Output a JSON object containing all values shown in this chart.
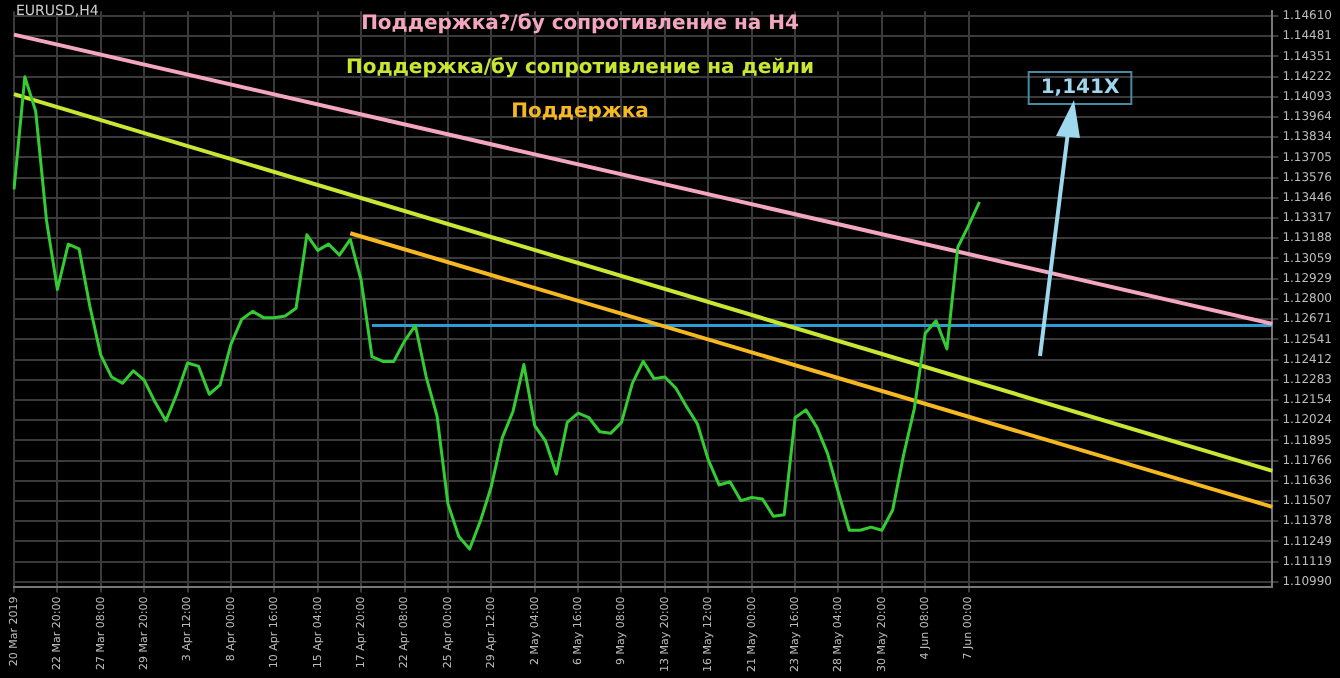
{
  "chart_data": {
    "type": "line",
    "title": "EURUSD,H4",
    "grid": true,
    "ylim": [
      1.1096,
      1.1464
    ],
    "yticks": [
      {
        "value": 1.1099,
        "label": "1.10990"
      },
      1.11119,
      1.11249,
      1.11378,
      1.11507,
      1.11636,
      1.11766,
      1.11895,
      1.12024,
      1.12154,
      1.12283,
      1.12412,
      1.12541,
      1.12671,
      {
        "value": 1.128,
        "label": "1.12800"
      },
      1.12929,
      1.13059,
      1.13188,
      1.13317,
      1.13446,
      1.13576,
      1.13705,
      1.13834,
      1.13964,
      1.14093,
      1.14222,
      1.14351,
      1.14481,
      {
        "value": 1.1461,
        "label": "1.14610"
      }
    ],
    "categories": [
      "20 Mar 2019",
      null,
      null,
      null,
      "22 Mar 20:00",
      null,
      null,
      null,
      "27 Mar 08:00",
      null,
      null,
      null,
      "29 Mar 20:00",
      null,
      null,
      null,
      "3 Apr 12:00",
      null,
      null,
      null,
      "8 Apr 00:00",
      null,
      null,
      null,
      "10 Apr 16:00",
      null,
      null,
      null,
      "15 Apr 04:00",
      null,
      null,
      null,
      "17 Apr 20:00",
      null,
      null,
      null,
      "22 Apr 08:00",
      null,
      null,
      null,
      "25 Apr 00:00",
      null,
      null,
      null,
      "29 Apr 12:00",
      null,
      null,
      null,
      "2 May 04:00",
      null,
      null,
      null,
      "6 May 16:00",
      null,
      null,
      null,
      "9 May 08:00",
      null,
      null,
      null,
      "13 May 20:00",
      null,
      null,
      null,
      "16 May 12:00",
      null,
      null,
      null,
      "21 May 00:00",
      null,
      null,
      null,
      "23 May 16:00",
      null,
      null,
      null,
      "28 May 04:00",
      null,
      null,
      null,
      "30 May 20:00",
      null,
      null,
      null,
      "4 Jun 08:00",
      null,
      null,
      null,
      "7 Jun 00:00",
      null,
      null,
      null,
      null,
      null,
      null,
      null,
      null,
      null,
      null,
      null,
      null,
      null,
      null,
      null,
      null,
      null,
      null,
      null,
      null,
      null,
      null,
      null,
      null,
      null,
      null,
      null,
      null
    ],
    "series": [
      {
        "color": "#33cc33",
        "values": [
          1.135,
          1.1422,
          1.14,
          1.133,
          1.1286,
          1.1315,
          1.1312,
          1.1275,
          1.1244,
          1.123,
          1.1226,
          1.1234,
          1.1228,
          1.1214,
          1.1202,
          1.1219,
          1.1239,
          1.1237,
          1.1219,
          1.1225,
          1.1251,
          1.1267,
          1.1272,
          1.1268,
          1.1268,
          1.1269,
          1.1274,
          1.1321,
          1.1311,
          1.1315,
          1.1308,
          1.1318,
          1.1292,
          1.1243,
          1.124,
          1.124,
          1.1253,
          1.1263,
          1.123,
          1.1205,
          1.1149,
          1.1128,
          1.112,
          1.1138,
          1.116,
          1.1191,
          1.1208,
          1.1238,
          1.1199,
          1.1189,
          1.1168,
          1.1201,
          1.1207,
          1.1204,
          1.1195,
          1.1194,
          1.1201,
          1.1226,
          1.124,
          1.1229,
          1.123,
          1.1223,
          1.1211,
          1.12,
          1.1177,
          1.1161,
          1.1163,
          1.1151,
          1.1153,
          1.1152,
          1.1141,
          1.1142,
          1.1204,
          1.1209,
          1.1198,
          1.1181,
          1.1156,
          1.1132,
          1.1132,
          1.1134,
          1.1132,
          1.1145,
          1.118,
          1.121,
          1.1258,
          1.1266,
          1.1248,
          1.1313,
          1.1327,
          1.1342,
          null,
          null,
          null,
          null,
          null,
          null,
          null,
          null,
          null,
          null,
          null,
          null,
          null,
          null,
          null,
          null,
          null,
          null,
          null,
          null,
          null,
          null,
          null,
          null,
          null,
          null,
          null
        ]
      },
      {
        "name": "Поддержка?/бу сопротивление на H4",
        "color": "#f4a6c0",
        "values": [
          1.1449,
          null,
          null,
          null,
          null,
          null,
          null,
          null,
          null,
          null,
          null,
          null,
          null,
          null,
          null,
          null,
          null,
          null,
          null,
          null,
          null,
          null,
          null,
          null,
          null,
          null,
          null,
          null,
          null,
          null,
          null,
          null,
          null,
          null,
          null,
          null,
          null,
          null,
          null,
          null,
          null,
          null,
          null,
          null,
          null,
          null,
          null,
          null,
          null,
          null,
          null,
          null,
          null,
          null,
          null,
          null,
          null,
          null,
          null,
          null,
          null,
          null,
          null,
          null,
          null,
          null,
          null,
          null,
          null,
          null,
          null,
          null,
          null,
          null,
          null,
          null,
          null,
          null,
          null,
          null,
          null,
          null,
          null,
          null,
          null,
          null,
          null,
          null,
          null,
          null,
          null,
          null,
          null,
          null,
          null,
          null,
          null,
          null,
          null,
          null,
          null,
          null,
          null,
          null,
          null,
          null,
          null,
          null,
          null,
          null,
          null,
          null,
          null,
          null,
          null,
          null,
          1.1264
        ]
      },
      {
        "name": "Поддержка/бу сопротивление на дейли",
        "color": "#c8e632",
        "values": [
          1.1411,
          null,
          null,
          null,
          null,
          null,
          null,
          null,
          null,
          null,
          null,
          null,
          null,
          null,
          null,
          null,
          null,
          null,
          null,
          null,
          null,
          null,
          null,
          null,
          null,
          null,
          null,
          null,
          null,
          null,
          null,
          null,
          null,
          null,
          null,
          null,
          null,
          null,
          null,
          null,
          null,
          null,
          null,
          null,
          null,
          null,
          null,
          null,
          null,
          null,
          null,
          null,
          null,
          null,
          null,
          null,
          null,
          null,
          null,
          null,
          null,
          null,
          null,
          null,
          null,
          null,
          null,
          null,
          null,
          null,
          null,
          null,
          null,
          null,
          null,
          null,
          null,
          null,
          null,
          null,
          null,
          null,
          null,
          null,
          null,
          null,
          null,
          null,
          null,
          null,
          null,
          null,
          null,
          null,
          null,
          null,
          null,
          null,
          null,
          null,
          null,
          null,
          null,
          null,
          null,
          null,
          null,
          null,
          null,
          null,
          null,
          null,
          null,
          null,
          null,
          null,
          1.117
        ]
      },
      {
        "name": "Поддержка",
        "color": "#f5b820",
        "values": [
          null,
          null,
          null,
          null,
          null,
          null,
          null,
          null,
          null,
          null,
          null,
          null,
          null,
          null,
          null,
          null,
          null,
          null,
          null,
          null,
          null,
          null,
          null,
          null,
          null,
          null,
          null,
          null,
          null,
          null,
          null,
          1.1322,
          null,
          null,
          null,
          null,
          null,
          null,
          null,
          null,
          null,
          null,
          null,
          null,
          null,
          null,
          null,
          null,
          null,
          null,
          null,
          null,
          null,
          null,
          null,
          null,
          null,
          null,
          null,
          null,
          null,
          null,
          null,
          null,
          null,
          null,
          null,
          null,
          null,
          null,
          null,
          null,
          null,
          null,
          null,
          null,
          null,
          null,
          null,
          null,
          null,
          null,
          null,
          null,
          null,
          null,
          null,
          null,
          null,
          null,
          null,
          null,
          null,
          null,
          null,
          null,
          null,
          null,
          null,
          null,
          null,
          null,
          null,
          null,
          null,
          null,
          null,
          null,
          null,
          null,
          null,
          null,
          null,
          null,
          null,
          null,
          1.1147
        ]
      },
      {
        "color": "#2a9fd6",
        "values": [
          null,
          null,
          null,
          null,
          null,
          null,
          null,
          null,
          null,
          null,
          null,
          null,
          null,
          null,
          null,
          null,
          null,
          null,
          null,
          null,
          null,
          null,
          null,
          null,
          null,
          null,
          null,
          null,
          null,
          null,
          null,
          null,
          null,
          1.1263,
          null,
          null,
          null,
          null,
          null,
          null,
          null,
          null,
          null,
          null,
          null,
          null,
          null,
          null,
          null,
          null,
          null,
          null,
          null,
          null,
          null,
          null,
          null,
          null,
          null,
          null,
          null,
          null,
          null,
          null,
          null,
          null,
          null,
          null,
          null,
          null,
          null,
          null,
          null,
          null,
          null,
          null,
          null,
          null,
          null,
          null,
          null,
          null,
          null,
          null,
          null,
          null,
          null,
          null,
          null,
          null,
          null,
          null,
          null,
          null,
          null,
          null,
          null,
          null,
          null,
          null,
          null,
          null,
          null,
          null,
          null,
          null,
          null,
          null,
          null,
          null,
          null,
          null,
          null,
          null,
          null,
          null,
          1.1263
        ]
      }
    ],
    "annotations": [
      "1,141X"
    ]
  }
}
